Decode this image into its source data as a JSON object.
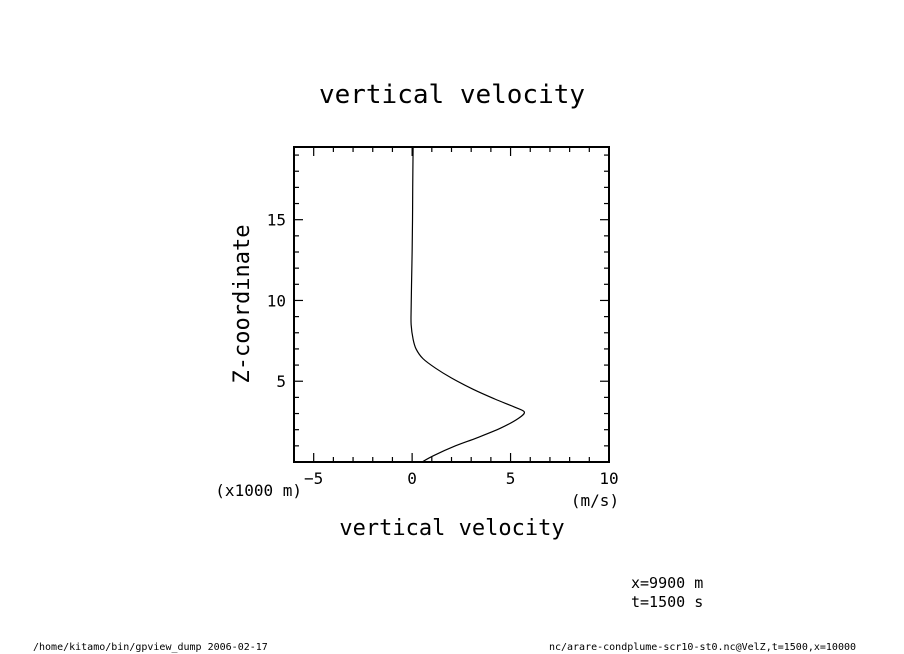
{
  "chart_data": {
    "type": "line",
    "title": "vertical velocity",
    "xlabel": "vertical velocity",
    "ylabel": "Z-coordinate",
    "x_units": "(m/s)",
    "y_units": "(x1000 m)",
    "xlim": [
      -6,
      10
    ],
    "ylim": [
      0,
      19.5
    ],
    "xticks": [
      -5,
      0,
      5,
      10
    ],
    "yticks": [
      5,
      10,
      15
    ],
    "xtick_labels": [
      "−5",
      "0",
      "5",
      "10"
    ],
    "ytick_labels": [
      "5",
      "10",
      "15"
    ],
    "grid": false,
    "series": [
      {
        "points": [
          [
            0.5,
            0.0
          ],
          [
            1.1,
            0.4
          ],
          [
            2.2,
            1.0
          ],
          [
            3.3,
            1.5
          ],
          [
            4.5,
            2.1
          ],
          [
            5.4,
            2.7
          ],
          [
            5.7,
            3.1
          ],
          [
            5.2,
            3.4
          ],
          [
            4.2,
            3.9
          ],
          [
            3.1,
            4.5
          ],
          [
            2.0,
            5.2
          ],
          [
            1.2,
            5.8
          ],
          [
            0.55,
            6.4
          ],
          [
            0.2,
            7.0
          ],
          [
            0.05,
            7.6
          ],
          [
            -0.05,
            8.5
          ],
          [
            -0.05,
            9.5
          ],
          [
            -0.03,
            11.0
          ],
          [
            0.0,
            13.0
          ],
          [
            0.02,
            15.0
          ],
          [
            0.03,
            17.0
          ],
          [
            0.05,
            19.5
          ]
        ]
      }
    ]
  },
  "info": {
    "x_position": "x=9900 m",
    "time": "t=1500 s"
  },
  "footer": {
    "left": "/home/kitamo/bin/gpview_dump  2006-02-17",
    "right": "nc/arare-condplume-scr10-st0.nc@VelZ,t=1500,x=10000"
  }
}
